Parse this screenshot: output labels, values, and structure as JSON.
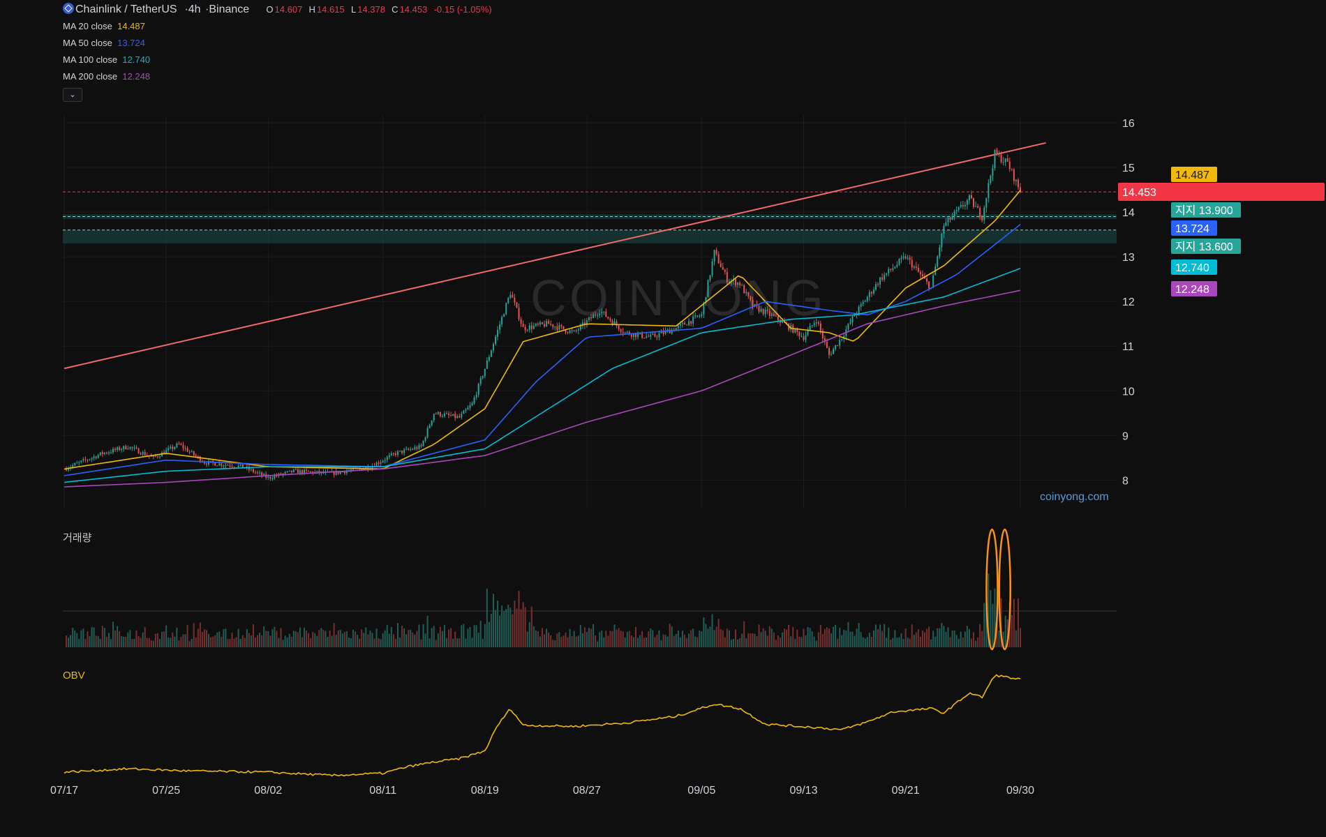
{
  "header": {
    "pair": "Chainlink / TetherUS",
    "interval": "4h",
    "exchange": "Binance",
    "open_label": "O",
    "open": "14.607",
    "high_label": "H",
    "high": "14.615",
    "low_label": "L",
    "low": "14.378",
    "close_label": "C",
    "close": "14.453",
    "change": "-0.15 (-1.05%)"
  },
  "moving_averages": [
    {
      "label": "MA",
      "period": "20",
      "source": "close",
      "value": "14.487",
      "color": "#f0b90b"
    },
    {
      "label": "MA",
      "period": "50",
      "source": "close",
      "value": "13.724",
      "color": "#2962ff"
    },
    {
      "label": "MA",
      "period": "100",
      "source": "close",
      "value": "12.740",
      "color": "#00bcd4"
    },
    {
      "label": "MA",
      "period": "200",
      "source": "close",
      "value": "12.248",
      "color": "#ab47bc"
    }
  ],
  "collapse_glyph": "⌄",
  "watermark": "COINYONG",
  "site_label": "coinyong.com",
  "volume_label": "거래량",
  "obv_label": "OBV",
  "colors": {
    "up": "#26a69a",
    "down": "#ef5350",
    "background": "#0f0f10",
    "trendline": "#f06a6a",
    "support": "#26a69a",
    "obv": "#f0b90b"
  },
  "chart_data": {
    "type": "candlestick",
    "x_labels": [
      "07/17",
      "07/25",
      "08/02",
      "08/11",
      "08/19",
      "08/27",
      "09/05",
      "09/13",
      "09/21",
      "09/30"
    ],
    "y_ticks": [
      8,
      9,
      10,
      11,
      12,
      13,
      14,
      15,
      16
    ],
    "ylim": [
      7.35,
      16.25
    ],
    "price_path": [
      [
        "07/17",
        8.25
      ],
      [
        "07/20",
        8.6
      ],
      [
        "07/22",
        8.75
      ],
      [
        "07/24",
        8.5
      ],
      [
        "07/26",
        8.8
      ],
      [
        "07/28",
        8.4
      ],
      [
        "07/31",
        8.3
      ],
      [
        "08/02",
        8.05
      ],
      [
        "08/04",
        8.2
      ],
      [
        "08/07",
        8.15
      ],
      [
        "08/10",
        8.3
      ],
      [
        "08/12",
        8.6
      ],
      [
        "08/14",
        8.75
      ],
      [
        "08/15",
        9.5
      ],
      [
        "08/17",
        9.4
      ],
      [
        "08/18",
        9.7
      ],
      [
        "08/19",
        10.5
      ],
      [
        "08/21",
        12.2
      ],
      [
        "08/22",
        11.4
      ],
      [
        "08/24",
        11.5
      ],
      [
        "08/26",
        11.3
      ],
      [
        "08/28",
        11.8
      ],
      [
        "08/30",
        11.3
      ],
      [
        "09/01",
        11.2
      ],
      [
        "09/03",
        11.4
      ],
      [
        "09/05",
        11.7
      ],
      [
        "09/06",
        13.1
      ],
      [
        "09/07",
        12.5
      ],
      [
        "09/08",
        12.4
      ],
      [
        "09/09",
        11.9
      ],
      [
        "09/11",
        11.6
      ],
      [
        "09/13",
        11.2
      ],
      [
        "09/14",
        11.6
      ],
      [
        "09/15",
        10.8
      ],
      [
        "09/16",
        11.2
      ],
      [
        "09/17",
        11.7
      ],
      [
        "09/19",
        12.5
      ],
      [
        "09/21",
        13.0
      ],
      [
        "09/23",
        12.3
      ],
      [
        "09/24",
        13.7
      ],
      [
        "09/26",
        14.3
      ],
      [
        "09/27",
        13.9
      ],
      [
        "09/28",
        15.3
      ],
      [
        "09/29",
        15.1
      ],
      [
        "09/30",
        14.453
      ]
    ],
    "ma_paths": {
      "MA20": [
        [
          "07/17",
          8.25
        ],
        [
          "07/25",
          8.6
        ],
        [
          "08/02",
          8.3
        ],
        [
          "08/11",
          8.25
        ],
        [
          "08/15",
          8.8
        ],
        [
          "08/19",
          9.6
        ],
        [
          "08/22",
          11.1
        ],
        [
          "08/27",
          11.5
        ],
        [
          "09/03",
          11.45
        ],
        [
          "09/08",
          12.6
        ],
        [
          "09/12",
          11.4
        ],
        [
          "09/15",
          11.3
        ],
        [
          "09/17",
          11.1
        ],
        [
          "09/21",
          12.3
        ],
        [
          "09/24",
          12.8
        ],
        [
          "09/26",
          13.3
        ],
        [
          "09/28",
          13.8
        ],
        [
          "09/30",
          14.487
        ]
      ],
      "MA50": [
        [
          "07/17",
          8.1
        ],
        [
          "07/25",
          8.45
        ],
        [
          "08/02",
          8.35
        ],
        [
          "08/11",
          8.3
        ],
        [
          "08/19",
          8.9
        ],
        [
          "08/23",
          10.2
        ],
        [
          "08/27",
          11.2
        ],
        [
          "09/05",
          11.4
        ],
        [
          "09/10",
          12.0
        ],
        [
          "09/15",
          11.8
        ],
        [
          "09/18",
          11.7
        ],
        [
          "09/21",
          12.0
        ],
        [
          "09/25",
          12.6
        ],
        [
          "09/30",
          13.724
        ]
      ],
      "MA100": [
        [
          "07/17",
          7.95
        ],
        [
          "07/25",
          8.2
        ],
        [
          "08/02",
          8.3
        ],
        [
          "08/11",
          8.3
        ],
        [
          "08/19",
          8.7
        ],
        [
          "08/24",
          9.6
        ],
        [
          "08/29",
          10.5
        ],
        [
          "09/05",
          11.3
        ],
        [
          "09/12",
          11.6
        ],
        [
          "09/17",
          11.7
        ],
        [
          "09/24",
          12.1
        ],
        [
          "09/30",
          12.74
        ]
      ],
      "MA200": [
        [
          "07/17",
          7.85
        ],
        [
          "07/25",
          7.95
        ],
        [
          "08/02",
          8.1
        ],
        [
          "08/11",
          8.25
        ],
        [
          "08/19",
          8.55
        ],
        [
          "08/27",
          9.3
        ],
        [
          "09/05",
          10.0
        ],
        [
          "09/12",
          10.8
        ],
        [
          "09/18",
          11.5
        ],
        [
          "09/24",
          11.9
        ],
        [
          "09/30",
          12.248
        ]
      ]
    },
    "trendline": {
      "start": [
        "07/17",
        10.5
      ],
      "end": [
        "10/02",
        15.55
      ],
      "color": "#f06a6a"
    },
    "support_zones": [
      [
        13.85,
        13.95
      ],
      [
        13.3,
        13.6
      ]
    ],
    "support_levels": [
      13.9,
      13.6
    ],
    "last_price": 14.453,
    "price_labels": [
      {
        "text": "14.487",
        "color": "#f0b90b",
        "dark_text": true
      },
      {
        "text": "14.453",
        "color": "#f23645"
      },
      {
        "text": "지지 13.900",
        "color": "#26a69a"
      },
      {
        "text": "13.724",
        "color": "#2962ff"
      },
      {
        "text": "지지 13.600",
        "color": "#26a69a"
      },
      {
        "text": "12.740",
        "color": "#00bcd4"
      },
      {
        "text": "12.248",
        "color": "#ab47bc"
      }
    ],
    "volume_spike_markers": [
      "09/28",
      "09/29"
    ],
    "obv_path": [
      [
        "07/17",
        0.05
      ],
      [
        "07/22",
        0.08
      ],
      [
        "07/27",
        0.06
      ],
      [
        "08/02",
        0.05
      ],
      [
        "08/07",
        0.02
      ],
      [
        "08/11",
        0.04
      ],
      [
        "08/13",
        0.1
      ],
      [
        "08/15",
        0.14
      ],
      [
        "08/17",
        0.17
      ],
      [
        "08/19",
        0.24
      ],
      [
        "08/20",
        0.47
      ],
      [
        "08/21",
        0.62
      ],
      [
        "08/22",
        0.47
      ],
      [
        "08/26",
        0.46
      ],
      [
        "08/30",
        0.49
      ],
      [
        "09/03",
        0.55
      ],
      [
        "09/06",
        0.66
      ],
      [
        "09/08",
        0.62
      ],
      [
        "09/10",
        0.48
      ],
      [
        "09/14",
        0.45
      ],
      [
        "09/16",
        0.43
      ],
      [
        "09/18",
        0.5
      ],
      [
        "09/20",
        0.59
      ],
      [
        "09/23",
        0.62
      ],
      [
        "09/24",
        0.58
      ],
      [
        "09/26",
        0.76
      ],
      [
        "09/27",
        0.72
      ],
      [
        "09/28",
        0.92
      ],
      [
        "09/29",
        0.9
      ],
      [
        "09/30",
        0.88
      ]
    ]
  }
}
